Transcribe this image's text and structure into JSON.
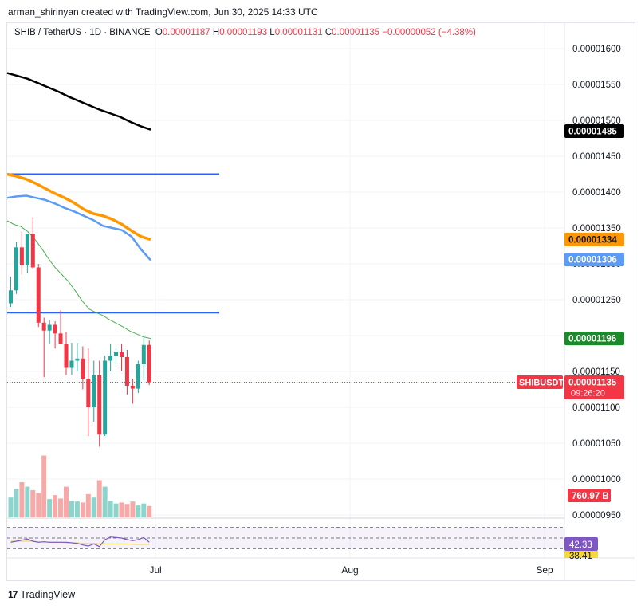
{
  "header": {
    "text": "arman_shirinyan created with TradingView.com, Jun 30, 2025 14:33 UTC"
  },
  "legend": {
    "symbol": "SHIB / TetherUS · 1D · BINANCE",
    "open_label": "O",
    "open": "0.00001187",
    "high_label": "H",
    "high": "0.00001193",
    "low_label": "L",
    "low": "0.00001131",
    "close_label": "C",
    "close": "0.00001135",
    "change": "−0.00000052 (−4.38%)"
  },
  "footer": {
    "brand": "TradingView"
  },
  "colors": {
    "up": "#26a69a",
    "down": "#f23645",
    "up_vol": "#8dd5cc",
    "down_vol": "#f7a9a7",
    "ma200": "#000000",
    "ma100": "#ff9800",
    "ma50": "#5b9cf6",
    "ma20": "#4caf50",
    "hline": "#2962ff",
    "rsi": "#7e57c2",
    "rsi_ma": "#f5d73c"
  },
  "chart_data": {
    "type": "candlestick",
    "price_axis": {
      "min": 9.5e-06,
      "max": 1.6e-05,
      "ticks": [
        "0.00001600",
        "0.00001550",
        "0.00001500",
        "0.00001450",
        "0.00001400",
        "0.00001350",
        "0.00001300",
        "0.00001250",
        "0.00001200",
        "0.00001150",
        "0.00001100",
        "0.00001050",
        "0.00001000",
        "0.00000950"
      ]
    },
    "time_axis": {
      "labels": [
        "Jul",
        "Aug",
        "Sep"
      ]
    },
    "candles": [
      [
        1.245e-05,
        1.282e-05,
        1.24e-05,
        1.263e-05
      ],
      [
        1.263e-05,
        1.33e-05,
        1.258e-05,
        1.323e-05
      ],
      [
        1.323e-05,
        1.345e-05,
        1.285e-05,
        1.298e-05
      ],
      [
        1.298e-05,
        1.34e-05,
        1.287e-05,
        1.342e-05
      ],
      [
        1.342e-05,
        1.365e-05,
        1.292e-05,
        1.295e-05
      ],
      [
        1.295e-05,
        1.3e-05,
        1.212e-05,
        1.218e-05
      ],
      [
        1.218e-05,
        1.225e-05,
        1.142e-05,
        1.207e-05
      ],
      [
        1.207e-05,
        1.222e-05,
        1.188e-05,
        1.215e-05
      ],
      [
        1.215e-05,
        1.22e-05,
        1.182e-05,
        1.203e-05
      ],
      [
        1.203e-05,
        1.235e-05,
        1.188e-05,
        1.188e-05
      ],
      [
        1.188e-05,
        1.205e-05,
        1.145e-05,
        1.155e-05
      ],
      [
        1.155e-05,
        1.19e-05,
        1.145e-05,
        1.165e-05
      ],
      [
        1.165e-05,
        1.19e-05,
        1.15e-05,
        1.168e-05
      ],
      [
        1.168e-05,
        1.185e-05,
        1.125e-05,
        1.14e-05
      ],
      [
        1.14e-05,
        1.182e-05,
        1.06e-05,
        1.1e-05
      ],
      [
        1.1e-05,
        1.165e-05,
        1.08e-05,
        1.145e-05
      ],
      [
        1.145e-05,
        1.165e-05,
        1.045e-05,
        1.062e-05
      ],
      [
        1.062e-05,
        1.172e-05,
        1.06e-05,
        1.165e-05
      ],
      [
        1.165e-05,
        1.188e-05,
        1.15e-05,
        1.172e-05
      ],
      [
        1.172e-05,
        1.182e-05,
        1.16e-05,
        1.177e-05
      ],
      [
        1.177e-05,
        1.188e-05,
        1.15e-05,
        1.17e-05
      ],
      [
        1.17e-05,
        1.18e-05,
        1.118e-05,
        1.13e-05
      ],
      [
        1.13e-05,
        1.14e-05,
        1.105e-05,
        1.126e-05
      ],
      [
        1.126e-05,
        1.165e-05,
        1.12e-05,
        1.16e-05
      ],
      [
        1.16e-05,
        1.198e-05,
        1.138e-05,
        1.187e-05
      ],
      [
        1.187e-05,
        1.193e-05,
        1.131e-05,
        1.135e-05
      ]
    ],
    "volume": [
      0.4,
      0.58,
      0.71,
      0.62,
      0.55,
      0.49,
      1.25,
      0.37,
      0.45,
      0.38,
      0.62,
      0.33,
      0.32,
      0.3,
      0.47,
      0.4,
      0.75,
      0.62,
      0.33,
      0.28,
      0.3,
      0.27,
      0.32,
      0.24,
      0.28,
      0.23
    ],
    "moving_averages": [
      {
        "name": "MA200",
        "value": 1.485e-05,
        "points": [
          1.566e-05,
          1.562e-05,
          1.558e-05,
          1.552e-05,
          1.546e-05,
          1.54e-05,
          1.533e-05,
          1.527e-05,
          1.521e-05,
          1.515e-05,
          1.51e-05,
          1.505e-05,
          1.498e-05,
          1.492e-05,
          1.487e-05
        ]
      },
      {
        "name": "MA100",
        "value": 1.334e-05,
        "points": [
          1.425e-05,
          1.422e-05,
          1.418e-05,
          1.412e-05,
          1.405e-05,
          1.398e-05,
          1.392e-05,
          1.385e-05,
          1.376e-05,
          1.37e-05,
          1.367e-05,
          1.362e-05,
          1.355e-05,
          1.346e-05,
          1.338e-05,
          1.334e-05
        ]
      },
      {
        "name": "MA50",
        "value": 1.306e-05,
        "points": [
          1.392e-05,
          1.394e-05,
          1.395e-05,
          1.392e-05,
          1.389e-05,
          1.384e-05,
          1.378e-05,
          1.373e-05,
          1.367e-05,
          1.361e-05,
          1.353e-05,
          1.35e-05,
          1.347e-05,
          1.338e-05,
          1.32e-05,
          1.305e-05
        ]
      },
      {
        "name": "MA20",
        "value": 1.196e-05,
        "points": [
          1.36e-05,
          1.355e-05,
          1.352e-05,
          1.345e-05,
          1.335e-05,
          1.322e-05,
          1.308e-05,
          1.295e-05,
          1.285e-05,
          1.275e-05,
          1.262e-05,
          1.248e-05,
          1.237e-05,
          1.232e-05,
          1.228e-05,
          1.222e-05,
          1.217e-05,
          1.212e-05,
          1.206e-05,
          1.202e-05,
          1.198e-05,
          1.196e-05
        ]
      }
    ],
    "horizontal_lines": [
      1.425e-05,
      1.232e-05
    ],
    "current": {
      "symbol": "SHIBUSDT",
      "price": "0.00001135",
      "countdown": "09:26:20"
    },
    "price_labels": {
      "ma200": "0.00001485",
      "ma100": "0.00001334",
      "ma50": "0.00001306",
      "ma20": "0.00001196",
      "volume": "760.97 B"
    },
    "rsi": {
      "value": "42.33",
      "ma_value": "38.41",
      "points": [
        42,
        44,
        46,
        48,
        44,
        42,
        43,
        42,
        42,
        42,
        42,
        41,
        40,
        37,
        35,
        39,
        34,
        47,
        52,
        51,
        50,
        47,
        45,
        47,
        51,
        42
      ],
      "ma_points": [
        44,
        44,
        44,
        44,
        44,
        43,
        43,
        42,
        42,
        42,
        41,
        41,
        41,
        40,
        40,
        40,
        39,
        39,
        39,
        39,
        39,
        39,
        38,
        38,
        38,
        38
      ]
    }
  }
}
